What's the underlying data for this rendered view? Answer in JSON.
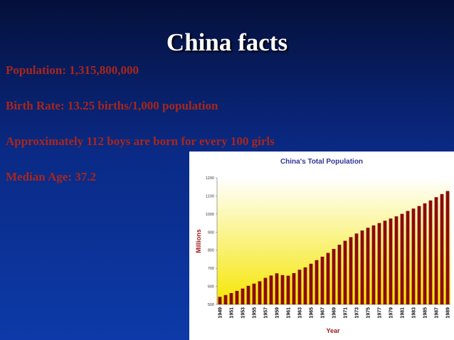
{
  "title": "China facts",
  "facts": [
    "Population: 1,315,800,000",
    "Birth Rate: 13.25 births/1,000 population",
    "Approximately 112 boys are born for every 100 girls",
    "Median Age: 37.2"
  ],
  "chart_data": {
    "type": "bar",
    "title": "China's Total Population",
    "xlabel": "Year",
    "ylabel": "Millions",
    "categories": [
      "1949",
      null,
      "1951",
      null,
      "1953",
      null,
      "1955",
      null,
      "1957",
      null,
      "1959",
      null,
      "1961",
      null,
      "1963",
      null,
      "1965",
      null,
      "1967",
      null,
      "1969",
      null,
      "1971",
      null,
      "1973",
      null,
      "1975",
      null,
      "1977",
      null,
      "1979",
      null,
      "1981",
      null,
      "1983",
      null,
      "1985",
      null,
      "1987",
      null,
      "1989"
    ],
    "values": [
      542,
      552,
      563,
      575,
      588,
      603,
      615,
      628,
      647,
      660,
      672,
      662,
      659,
      673,
      692,
      705,
      725,
      745,
      764,
      785,
      807,
      830,
      852,
      872,
      892,
      909,
      924,
      937,
      950,
      963,
      975,
      987,
      1001,
      1017,
      1030,
      1044,
      1059,
      1075,
      1093,
      1110,
      1127
    ],
    "color": "#8b0a0a",
    "ylim": [
      500,
      1200
    ],
    "yticks": [
      500,
      600,
      700,
      800,
      900,
      1000,
      1100,
      1200
    ]
  }
}
